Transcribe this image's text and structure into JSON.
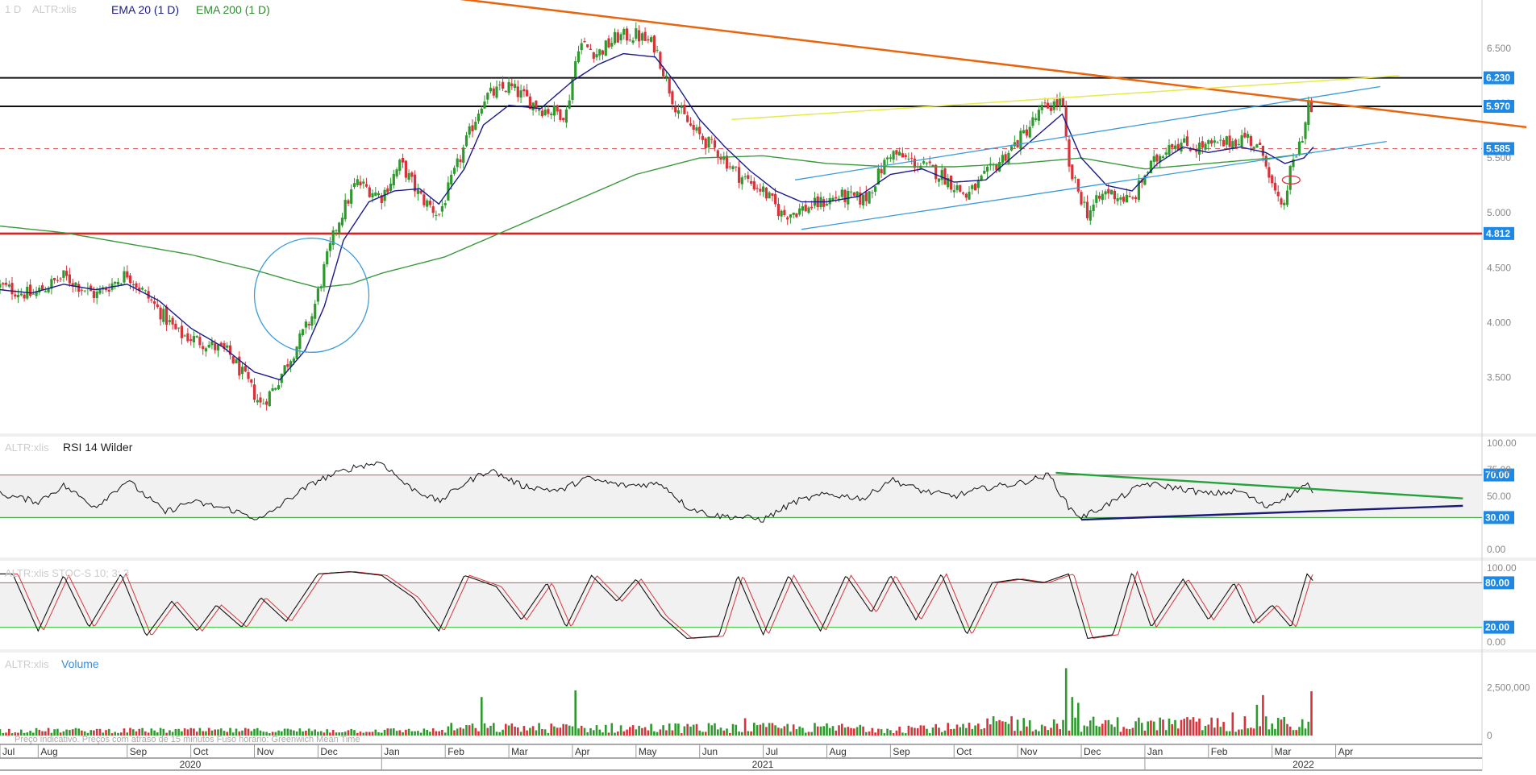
{
  "colors": {
    "up": "#2e9a2e",
    "down": "#d8323b",
    "ema20": "#1a1a8c",
    "ema200": "#3c9a3c",
    "trend_orange": "#e8650f",
    "trend_yellow": "#e6ea4a",
    "channel_blue": "#3a9ad9",
    "support_red": "#e01f1f",
    "resistance_black": "#111111",
    "label_blue": "#1e88e5",
    "rsi_green": "#23a23a",
    "rsi_navy": "#1a1a7a",
    "grid_border": "#cfcfcf"
  },
  "header": {
    "interval": "1 D",
    "symbol": "ALTR:xlis",
    "ema20_label": "EMA 20  (1 D)",
    "ema200_label": "EMA 200  (1 D)"
  },
  "rsi_panel": {
    "symbol": "ALTR:xlis",
    "label": "RSI 14 Wilder"
  },
  "stoch_panel": {
    "label": "ALTR:xlis  STOC-S 10; 3; 3"
  },
  "volume_panel": {
    "symbol": "ALTR:xlis",
    "label": "Volume"
  },
  "footer_note": "Preço indicativo. Preços com atraso de 15 minutos    Fuso horário: Greenwich Mean Time",
  "chart_data": {
    "type": "candlestick",
    "price_axis": {
      "ylim": [
        3.05,
        6.88
      ],
      "ticks": [
        "3.500",
        "4.000",
        "4.500",
        "5.000",
        "6.500"
      ],
      "tick_values": [
        3.5,
        4.0,
        4.5,
        5.0,
        6.5
      ],
      "hidden_ticks": [
        "5.500",
        "6.000"
      ],
      "hidden_tick_values": [
        5.5,
        6.0
      ],
      "levels": [
        {
          "label": "6.230",
          "value": 6.23,
          "color": "#111111"
        },
        {
          "label": "5.970",
          "value": 5.97,
          "color": "#111111"
        },
        {
          "label": "5.585",
          "value": 5.585,
          "color": "#e05a5a"
        },
        {
          "label": "4.812",
          "value": 4.812,
          "color": "#e01f1f"
        }
      ]
    },
    "months": [
      {
        "label": "Jul",
        "t": 0
      },
      {
        "label": "Aug",
        "t": 0.6
      },
      {
        "label": "Sep",
        "t": 2.0
      },
      {
        "label": "Oct",
        "t": 3.0
      },
      {
        "label": "Nov",
        "t": 4.0
      },
      {
        "label": "Dec",
        "t": 5.0
      },
      {
        "label": "Jan",
        "t": 6.0
      },
      {
        "label": "Feb",
        "t": 7.0
      },
      {
        "label": "Mar",
        "t": 8.0
      },
      {
        "label": "Apr",
        "t": 9.0
      },
      {
        "label": "May",
        "t": 10.0
      },
      {
        "label": "Jun",
        "t": 11.0
      },
      {
        "label": "Jul",
        "t": 12.0
      },
      {
        "label": "Aug",
        "t": 13.0
      },
      {
        "label": "Sep",
        "t": 14.0
      },
      {
        "label": "Oct",
        "t": 15.0
      },
      {
        "label": "Nov",
        "t": 16.0
      },
      {
        "label": "Dec",
        "t": 17.0
      },
      {
        "label": "Jan",
        "t": 18.0
      },
      {
        "label": "Feb",
        "t": 19.0
      },
      {
        "label": "Mar",
        "t": 20.0
      },
      {
        "label": "Apr",
        "t": 21.0
      }
    ],
    "years": [
      {
        "label": "2020",
        "t": 3.0
      },
      {
        "label": "2021",
        "t": 12.0
      },
      {
        "label": "2022",
        "t": 20.5
      }
    ],
    "price_path": [
      [
        0,
        4.33
      ],
      [
        0.5,
        4.25
      ],
      [
        1.0,
        4.42
      ],
      [
        1.5,
        4.25
      ],
      [
        2.0,
        4.45
      ],
      [
        2.4,
        4.18
      ],
      [
        2.8,
        3.9
      ],
      [
        3.2,
        3.82
      ],
      [
        3.6,
        3.72
      ],
      [
        3.9,
        3.45
      ],
      [
        4.1,
        3.25
      ],
      [
        4.3,
        3.4
      ],
      [
        4.6,
        3.72
      ],
      [
        4.9,
        4.05
      ],
      [
        5.1,
        4.5
      ],
      [
        5.3,
        4.9
      ],
      [
        5.6,
        5.28
      ],
      [
        6.0,
        5.15
      ],
      [
        6.3,
        5.45
      ],
      [
        6.6,
        5.15
      ],
      [
        6.9,
        4.98
      ],
      [
        7.3,
        5.6
      ],
      [
        7.6,
        6.05
      ],
      [
        8.0,
        6.15
      ],
      [
        8.5,
        5.95
      ],
      [
        8.9,
        5.9
      ],
      [
        9.1,
        6.55
      ],
      [
        9.4,
        6.45
      ],
      [
        9.7,
        6.6
      ],
      [
        10.0,
        6.62
      ],
      [
        10.3,
        6.52
      ],
      [
        10.6,
        6.0
      ],
      [
        10.9,
        5.75
      ],
      [
        11.3,
        5.55
      ],
      [
        11.6,
        5.35
      ],
      [
        12.0,
        5.2
      ],
      [
        12.3,
        4.98
      ],
      [
        12.7,
        5.05
      ],
      [
        13.2,
        5.15
      ],
      [
        13.6,
        5.12
      ],
      [
        14.0,
        5.55
      ],
      [
        14.4,
        5.45
      ],
      [
        14.8,
        5.35
      ],
      [
        15.2,
        5.15
      ],
      [
        15.6,
        5.4
      ],
      [
        16.0,
        5.65
      ],
      [
        16.4,
        5.95
      ],
      [
        16.7,
        6.02
      ],
      [
        16.8,
        5.4
      ],
      [
        17.1,
        5.0
      ],
      [
        17.4,
        5.2
      ],
      [
        17.8,
        5.1
      ],
      [
        18.0,
        5.35
      ],
      [
        18.4,
        5.65
      ],
      [
        18.8,
        5.6
      ],
      [
        19.2,
        5.62
      ],
      [
        19.6,
        5.7
      ],
      [
        19.9,
        5.5
      ],
      [
        20.0,
        5.25
      ],
      [
        20.15,
        5.0
      ],
      [
        20.3,
        5.4
      ],
      [
        20.5,
        5.75
      ],
      [
        20.6,
        6.1
      ],
      [
        20.65,
        5.6
      ]
    ],
    "ema20_path": [
      [
        0,
        4.3
      ],
      [
        0.5,
        4.27
      ],
      [
        1.0,
        4.35
      ],
      [
        1.5,
        4.3
      ],
      [
        2.0,
        4.35
      ],
      [
        2.5,
        4.2
      ],
      [
        3.0,
        3.95
      ],
      [
        3.5,
        3.78
      ],
      [
        4.0,
        3.55
      ],
      [
        4.4,
        3.48
      ],
      [
        4.8,
        3.75
      ],
      [
        5.1,
        4.15
      ],
      [
        5.4,
        4.75
      ],
      [
        5.8,
        5.1
      ],
      [
        6.2,
        5.2
      ],
      [
        6.6,
        5.22
      ],
      [
        6.9,
        5.08
      ],
      [
        7.3,
        5.4
      ],
      [
        7.6,
        5.8
      ],
      [
        8.0,
        5.98
      ],
      [
        8.5,
        5.95
      ],
      [
        9.0,
        6.2
      ],
      [
        9.4,
        6.35
      ],
      [
        9.8,
        6.45
      ],
      [
        10.3,
        6.42
      ],
      [
        10.6,
        6.2
      ],
      [
        11.0,
        5.85
      ],
      [
        11.4,
        5.6
      ],
      [
        11.8,
        5.38
      ],
      [
        12.2,
        5.2
      ],
      [
        12.6,
        5.1
      ],
      [
        13.0,
        5.1
      ],
      [
        13.5,
        5.15
      ],
      [
        14.0,
        5.35
      ],
      [
        14.5,
        5.4
      ],
      [
        15.0,
        5.28
      ],
      [
        15.5,
        5.3
      ],
      [
        16.0,
        5.55
      ],
      [
        16.4,
        5.75
      ],
      [
        16.7,
        5.9
      ],
      [
        17.0,
        5.5
      ],
      [
        17.4,
        5.25
      ],
      [
        17.8,
        5.2
      ],
      [
        18.2,
        5.45
      ],
      [
        18.6,
        5.6
      ],
      [
        19.0,
        5.55
      ],
      [
        19.5,
        5.6
      ],
      [
        19.9,
        5.55
      ],
      [
        20.2,
        5.45
      ],
      [
        20.5,
        5.5
      ],
      [
        20.65,
        5.6
      ]
    ],
    "ema200_path": [
      [
        0,
        4.88
      ],
      [
        1.0,
        4.82
      ],
      [
        2.0,
        4.72
      ],
      [
        3.0,
        4.62
      ],
      [
        4.0,
        4.48
      ],
      [
        4.6,
        4.38
      ],
      [
        5.0,
        4.32
      ],
      [
        5.5,
        4.35
      ],
      [
        6.0,
        4.45
      ],
      [
        7.0,
        4.6
      ],
      [
        8.0,
        4.85
      ],
      [
        9.0,
        5.1
      ],
      [
        10.0,
        5.35
      ],
      [
        11.0,
        5.5
      ],
      [
        12.0,
        5.52
      ],
      [
        13.0,
        5.45
      ],
      [
        14.0,
        5.42
      ],
      [
        15.0,
        5.42
      ],
      [
        16.0,
        5.45
      ],
      [
        17.0,
        5.5
      ],
      [
        18.0,
        5.4
      ],
      [
        19.0,
        5.45
      ],
      [
        20.0,
        5.5
      ],
      [
        20.65,
        5.55
      ]
    ],
    "trendlines": [
      {
        "name": "orange-downtrend",
        "from": [
          7.2,
          6.95
        ],
        "to": [
          24.0,
          5.78
        ],
        "color": "#e8650f",
        "width": 2.5
      },
      {
        "name": "yellow-rising",
        "from": [
          11.5,
          5.85
        ],
        "to": [
          22.0,
          6.25
        ],
        "color": "#e6ea4a",
        "width": 1.5
      },
      {
        "name": "channel-upper",
        "from": [
          12.5,
          5.3
        ],
        "to": [
          21.7,
          6.15
        ],
        "color": "#3a9ad9",
        "width": 1.3
      },
      {
        "name": "channel-lower",
        "from": [
          12.6,
          4.85
        ],
        "to": [
          21.8,
          5.65
        ],
        "color": "#3a9ad9",
        "width": 1.3
      }
    ],
    "circle_annotation": {
      "t": 4.9,
      "price": 4.25,
      "rx_t": 0.9,
      "ry_price": 0.52,
      "color": "#3a9ad9"
    },
    "rsi": {
      "ylim": [
        0,
        100
      ],
      "ticks": [
        "100.00",
        "70.00",
        "50.00",
        "30.00",
        "0.00"
      ],
      "tick_values": [
        100,
        70,
        50,
        30,
        0
      ],
      "hidden_ticks": [
        "75.00"
      ],
      "hidden_tick_values": [
        75
      ],
      "overbought": 70,
      "oversold": 30,
      "path": [
        [
          0,
          52
        ],
        [
          0.6,
          45
        ],
        [
          1.0,
          60
        ],
        [
          1.5,
          40
        ],
        [
          2.0,
          65
        ],
        [
          2.6,
          35
        ],
        [
          3.0,
          45
        ],
        [
          3.6,
          38
        ],
        [
          4.1,
          28
        ],
        [
          4.6,
          50
        ],
        [
          5.0,
          65
        ],
        [
          5.6,
          78
        ],
        [
          6.0,
          82
        ],
        [
          6.4,
          60
        ],
        [
          6.9,
          45
        ],
        [
          7.3,
          62
        ],
        [
          7.7,
          75
        ],
        [
          8.2,
          60
        ],
        [
          8.8,
          55
        ],
        [
          9.2,
          67
        ],
        [
          9.8,
          60
        ],
        [
          10.4,
          62
        ],
        [
          10.8,
          40
        ],
        [
          11.2,
          32
        ],
        [
          11.7,
          30
        ],
        [
          12.0,
          28
        ],
        [
          12.5,
          45
        ],
        [
          13.0,
          52
        ],
        [
          13.6,
          48
        ],
        [
          14.0,
          66
        ],
        [
          14.5,
          55
        ],
        [
          15.0,
          50
        ],
        [
          15.5,
          58
        ],
        [
          16.0,
          62
        ],
        [
          16.5,
          70
        ],
        [
          16.8,
          40
        ],
        [
          17.0,
          30
        ],
        [
          17.5,
          45
        ],
        [
          18.0,
          62
        ],
        [
          18.5,
          58
        ],
        [
          19.0,
          52
        ],
        [
          19.5,
          55
        ],
        [
          19.9,
          40
        ],
        [
          20.3,
          52
        ],
        [
          20.55,
          62
        ],
        [
          20.65,
          50
        ]
      ],
      "trendlines": [
        {
          "from": [
            16.6,
            72
          ],
          "to": [
            23.0,
            48
          ],
          "color": "#23a23a"
        },
        {
          "from": [
            17.0,
            28
          ],
          "to": [
            23.0,
            41
          ],
          "color": "#1a1a7a"
        }
      ]
    },
    "stoch": {
      "ylim": [
        0,
        100
      ],
      "ticks": [
        "100.00",
        "80.00",
        "20.00",
        "0.00"
      ],
      "tick_values": [
        100,
        80,
        20,
        0
      ],
      "overbought": 80,
      "oversold": 20,
      "colors": {
        "k": "#111111",
        "d": "#d8323b"
      },
      "peaks": [
        {
          "t": 0.2,
          "v": 92
        },
        {
          "t": 0.6,
          "v": 15
        },
        {
          "t": 1.0,
          "v": 90
        },
        {
          "t": 1.4,
          "v": 20
        },
        {
          "t": 1.9,
          "v": 92
        },
        {
          "t": 2.3,
          "v": 8
        },
        {
          "t": 2.7,
          "v": 55
        },
        {
          "t": 3.1,
          "v": 15
        },
        {
          "t": 3.4,
          "v": 50
        },
        {
          "t": 3.8,
          "v": 20
        },
        {
          "t": 4.1,
          "v": 60
        },
        {
          "t": 4.5,
          "v": 28
        },
        {
          "t": 5.0,
          "v": 92
        },
        {
          "t": 5.5,
          "v": 95
        },
        {
          "t": 6.0,
          "v": 90
        },
        {
          "t": 6.5,
          "v": 60
        },
        {
          "t": 6.9,
          "v": 15
        },
        {
          "t": 7.3,
          "v": 90
        },
        {
          "t": 7.8,
          "v": 75
        },
        {
          "t": 8.2,
          "v": 30
        },
        {
          "t": 8.6,
          "v": 80
        },
        {
          "t": 8.9,
          "v": 20
        },
        {
          "t": 9.3,
          "v": 90
        },
        {
          "t": 9.7,
          "v": 55
        },
        {
          "t": 10.0,
          "v": 85
        },
        {
          "t": 10.4,
          "v": 35
        },
        {
          "t": 10.8,
          "v": 5
        },
        {
          "t": 11.3,
          "v": 8
        },
        {
          "t": 11.6,
          "v": 90
        },
        {
          "t": 12.0,
          "v": 10
        },
        {
          "t": 12.4,
          "v": 90
        },
        {
          "t": 12.9,
          "v": 15
        },
        {
          "t": 13.3,
          "v": 90
        },
        {
          "t": 13.7,
          "v": 40
        },
        {
          "t": 14.0,
          "v": 90
        },
        {
          "t": 14.4,
          "v": 30
        },
        {
          "t": 14.8,
          "v": 92
        },
        {
          "t": 15.2,
          "v": 10
        },
        {
          "t": 15.6,
          "v": 80
        },
        {
          "t": 16.0,
          "v": 85
        },
        {
          "t": 16.4,
          "v": 80
        },
        {
          "t": 16.8,
          "v": 92
        },
        {
          "t": 17.1,
          "v": 5
        },
        {
          "t": 17.5,
          "v": 10
        },
        {
          "t": 17.8,
          "v": 95
        },
        {
          "t": 18.1,
          "v": 20
        },
        {
          "t": 18.6,
          "v": 85
        },
        {
          "t": 19.0,
          "v": 30
        },
        {
          "t": 19.4,
          "v": 80
        },
        {
          "t": 19.7,
          "v": 25
        },
        {
          "t": 20.0,
          "v": 50
        },
        {
          "t": 20.3,
          "v": 20
        },
        {
          "t": 20.55,
          "v": 92
        },
        {
          "t": 20.65,
          "v": 82
        }
      ]
    },
    "volume": {
      "ticks": [
        "2,500,000",
        "0"
      ],
      "tick_values": [
        2500000,
        0
      ],
      "ylim": [
        0,
        3600000
      ],
      "spikes": [
        {
          "t": 7.55,
          "v": 2000000
        },
        {
          "t": 9.05,
          "v": 2350000
        },
        {
          "t": 16.78,
          "v": 3500000
        },
        {
          "t": 16.85,
          "v": 2000000
        },
        {
          "t": 16.95,
          "v": 1700000
        },
        {
          "t": 19.85,
          "v": 2100000
        },
        {
          "t": 19.75,
          "v": 1600000
        },
        {
          "t": 20.62,
          "v": 2300000
        },
        {
          "t": 11.7,
          "v": 900000
        },
        {
          "t": 15.9,
          "v": 1000000
        },
        {
          "t": 19.4,
          "v": 1200000
        }
      ]
    }
  }
}
